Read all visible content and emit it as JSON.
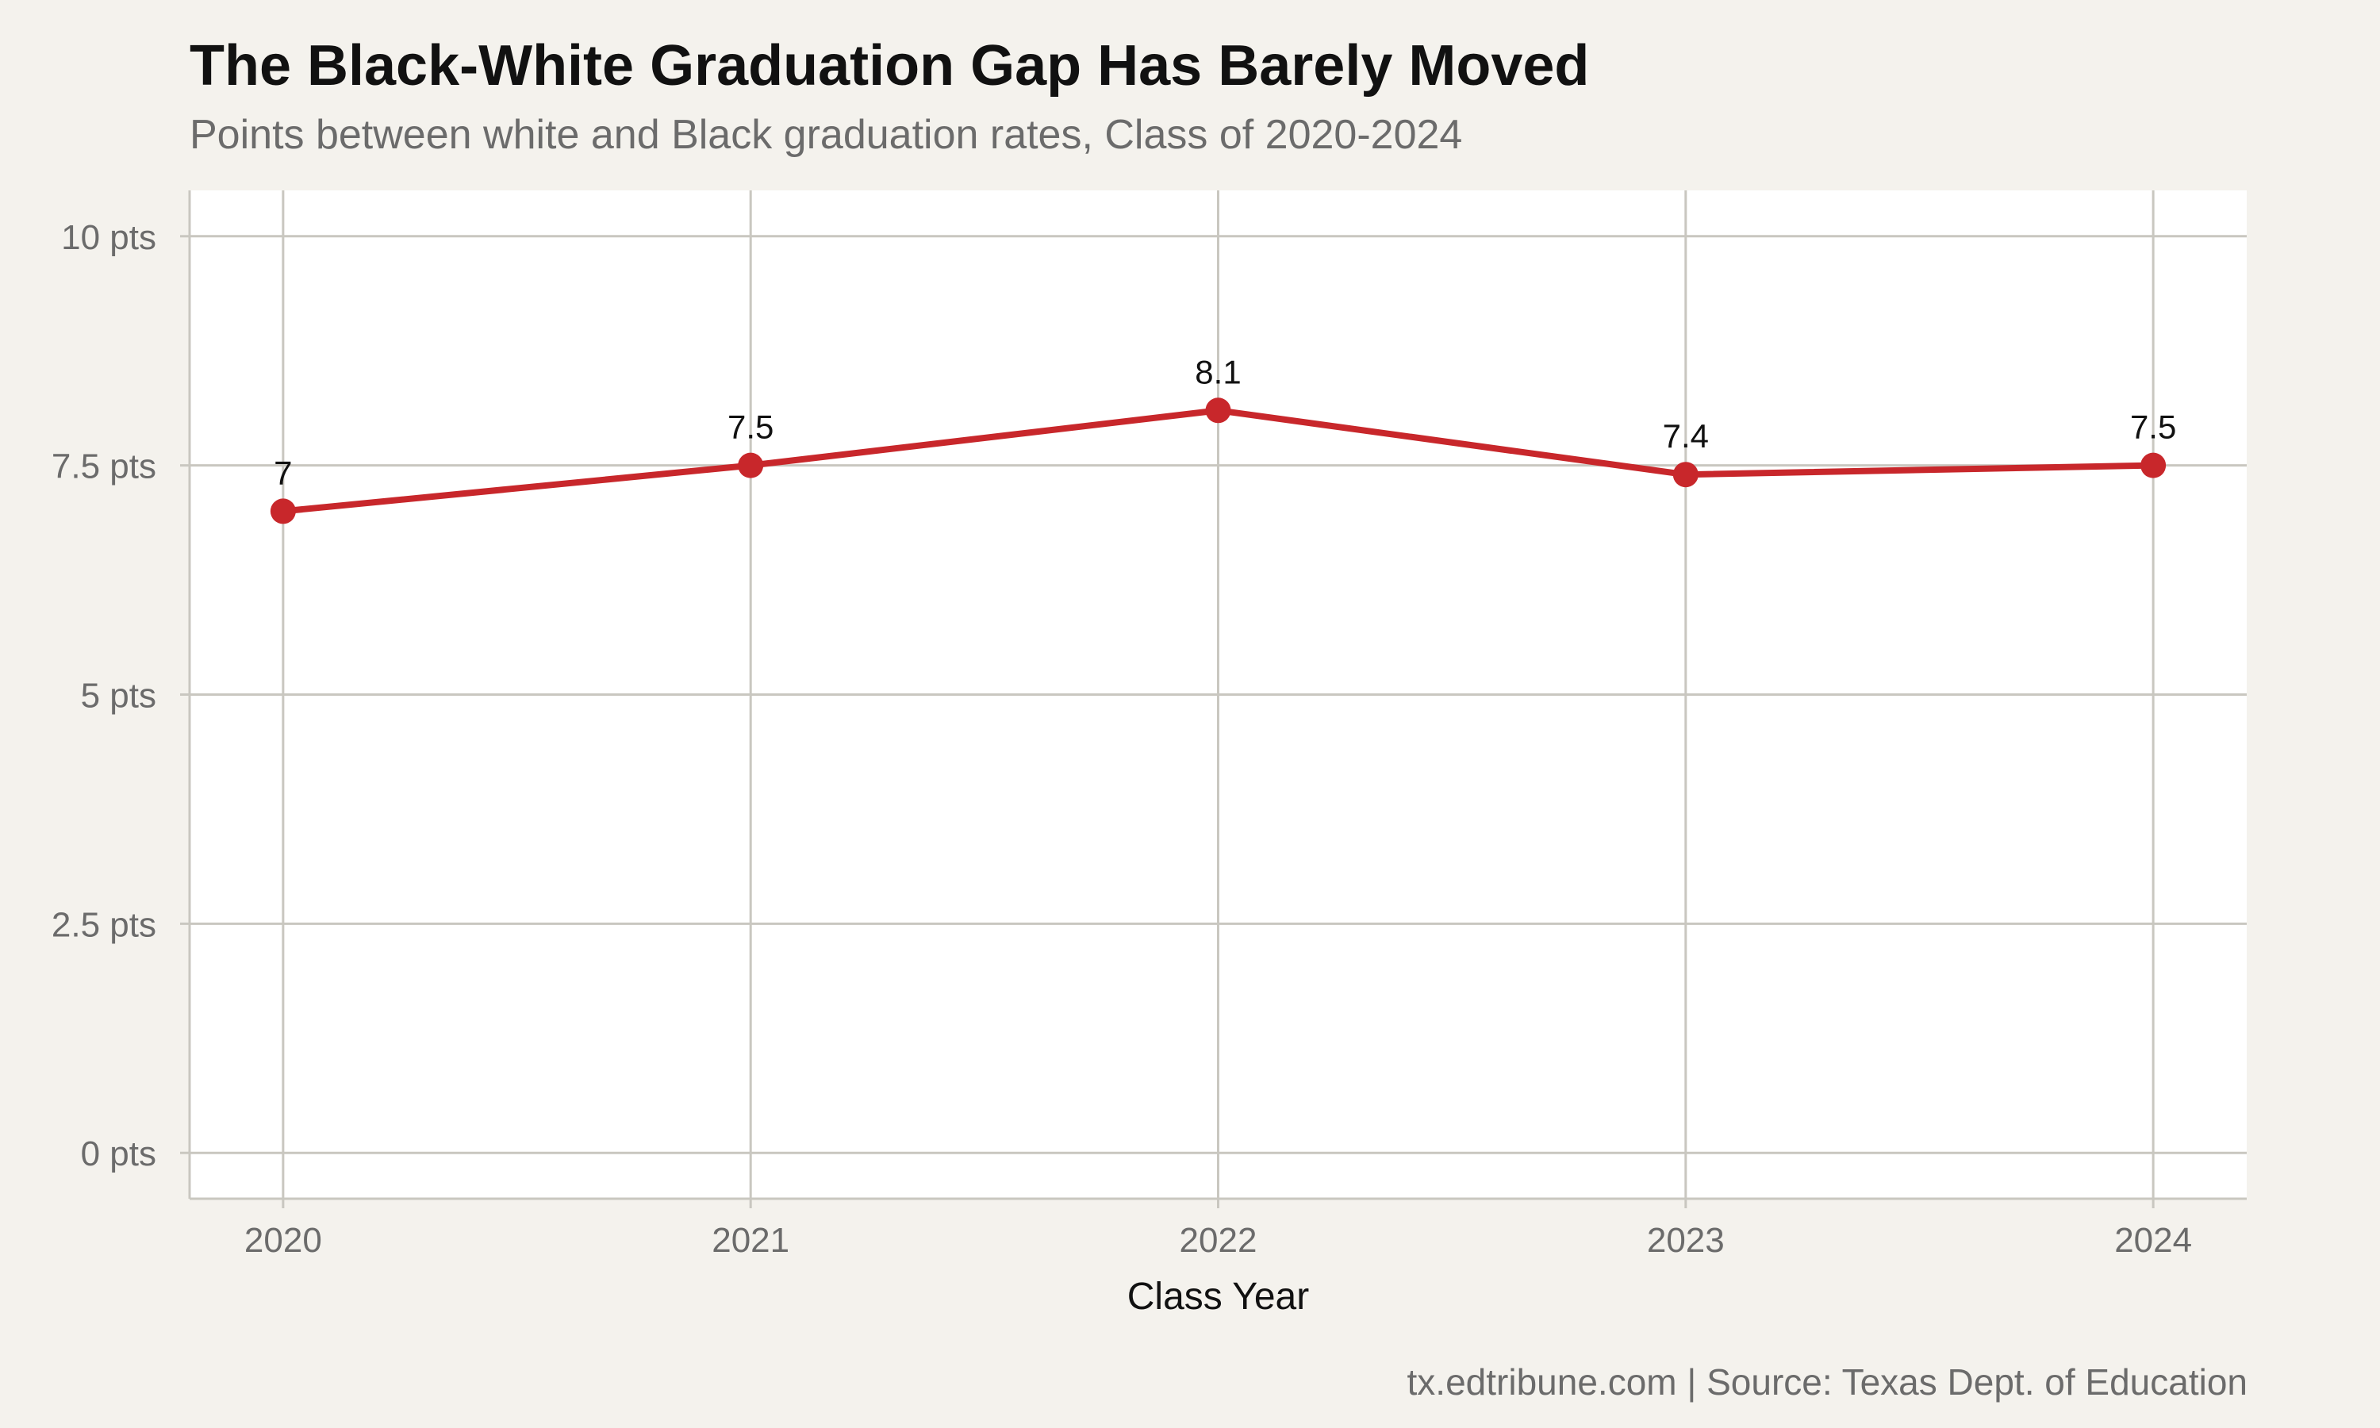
{
  "title": "The Black-White Graduation Gap Has Barely Moved",
  "subtitle": "Points between white and Black graduation rates, Class of 2020-2024",
  "caption": "tx.edtribune.com | Source: Texas Dept. of Education",
  "colors": {
    "line": "#c8272b",
    "background": "#f4f2ed",
    "panel": "#ffffff",
    "grid": "#c9c7c0"
  },
  "chart_data": {
    "type": "line",
    "x": [
      2020,
      2021,
      2022,
      2023,
      2024
    ],
    "x_tick_labels": [
      "2020",
      "2021",
      "2022",
      "2023",
      "2024"
    ],
    "series": [
      {
        "values": [
          7,
          7.5,
          8.1,
          7.4,
          7.5
        ],
        "data_labels": [
          "7",
          "7.5",
          "8.1",
          "7.4",
          "7.5"
        ]
      }
    ],
    "xlabel": "Class Year",
    "ylabel": "",
    "y_ticks": [
      0,
      2.5,
      5,
      7.5,
      10
    ],
    "y_tick_labels": [
      "0 pts",
      "2.5 pts",
      "5 pts",
      "7.5 pts",
      "10 pts"
    ],
    "ylim": [
      -0.5,
      10.5
    ],
    "xlim": [
      2019.8,
      2024.2
    ],
    "grid": true,
    "legend": "none"
  }
}
